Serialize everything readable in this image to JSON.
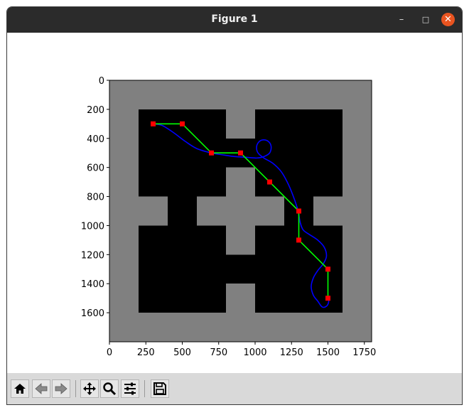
{
  "window": {
    "title": "Figure 1",
    "controls": {
      "minimize": "–",
      "maximize": "□",
      "close": "✕"
    }
  },
  "chart_data": {
    "type": "image+line",
    "x_ticks": [
      0,
      250,
      500,
      750,
      1000,
      1250,
      1500,
      1750
    ],
    "y_ticks": [
      0,
      200,
      400,
      600,
      800,
      1000,
      1200,
      1400,
      1600
    ],
    "xlim": [
      0,
      1800
    ],
    "ylim": [
      1800,
      0
    ],
    "y_inverted": true,
    "map": {
      "free_color": "#000000",
      "obstacle_color": "#808080",
      "extent": [
        0,
        1800,
        0,
        1800
      ],
      "free_regions": [
        [
          200,
          200,
          800,
          800
        ],
        [
          1000,
          200,
          1600,
          800
        ],
        [
          800,
          400,
          1000,
          600
        ],
        [
          400,
          800,
          600,
          1000
        ],
        [
          1200,
          800,
          1400,
          1000
        ],
        [
          200,
          1000,
          800,
          1600
        ],
        [
          1000,
          1000,
          1600,
          1600
        ],
        [
          800,
          1200,
          1000,
          1400
        ]
      ]
    },
    "series": [
      {
        "kind": "waypoints_path",
        "color": "#00ff00",
        "marker_color": "#ff0000",
        "points": [
          [
            300,
            300
          ],
          [
            500,
            300
          ],
          [
            700,
            500
          ],
          [
            900,
            500
          ],
          [
            1100,
            700
          ],
          [
            1300,
            900
          ],
          [
            1300,
            1100
          ],
          [
            1500,
            1300
          ],
          [
            1500,
            1500
          ]
        ]
      },
      {
        "kind": "smooth_path",
        "color": "#0000ff",
        "points": [
          [
            300,
            300
          ],
          [
            360,
            310
          ],
          [
            440,
            360
          ],
          [
            520,
            420
          ],
          [
            600,
            470
          ],
          [
            700,
            500
          ],
          [
            790,
            515
          ],
          [
            860,
            525
          ],
          [
            940,
            530
          ],
          [
            1010,
            535
          ],
          [
            1060,
            525
          ],
          [
            1100,
            500
          ],
          [
            1110,
            455
          ],
          [
            1090,
            420
          ],
          [
            1055,
            410
          ],
          [
            1025,
            425
          ],
          [
            1010,
            460
          ],
          [
            1020,
            500
          ],
          [
            1060,
            535
          ],
          [
            1120,
            570
          ],
          [
            1180,
            630
          ],
          [
            1230,
            720
          ],
          [
            1270,
            820
          ],
          [
            1295,
            900
          ],
          [
            1310,
            980
          ],
          [
            1330,
            1030
          ],
          [
            1370,
            1060
          ],
          [
            1430,
            1100
          ],
          [
            1475,
            1150
          ],
          [
            1490,
            1210
          ],
          [
            1470,
            1260
          ],
          [
            1430,
            1310
          ],
          [
            1400,
            1360
          ],
          [
            1385,
            1420
          ],
          [
            1400,
            1480
          ],
          [
            1430,
            1520
          ],
          [
            1460,
            1560
          ],
          [
            1490,
            1555
          ],
          [
            1505,
            1525
          ],
          [
            1500,
            1500
          ]
        ]
      }
    ]
  },
  "toolbar": {
    "buttons": [
      "home",
      "back",
      "forward",
      "pan",
      "zoom",
      "configure-subplots",
      "save"
    ]
  }
}
